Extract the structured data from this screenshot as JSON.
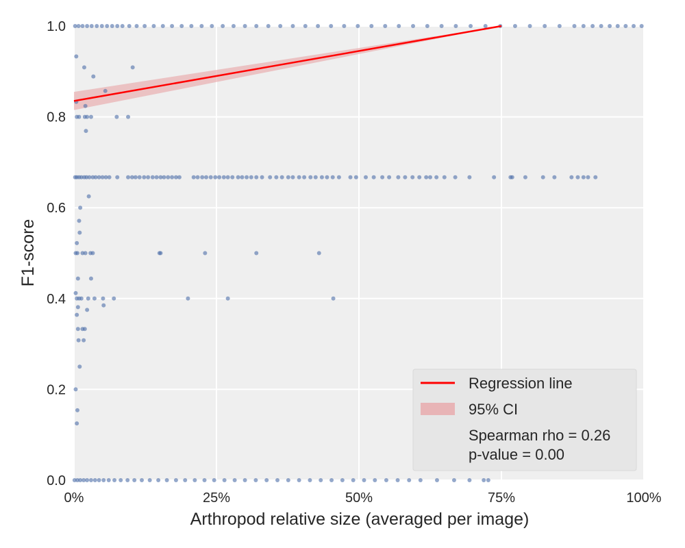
{
  "chart_data": {
    "type": "scatter",
    "title": "",
    "xlabel": "Arthropod relative size (averaged per image)",
    "ylabel": "F1-score",
    "xlim": [
      0,
      100
    ],
    "ylim": [
      0,
      1
    ],
    "x_unit": "%",
    "x_ticks": [
      "0%",
      "25%",
      "50%",
      "75%",
      "100%"
    ],
    "y_ticks": [
      "0.0",
      "0.2",
      "0.4",
      "0.6",
      "0.8",
      "1.0"
    ],
    "grid": true,
    "background": "#efefef",
    "point_color": "#4c6ea8",
    "line_color": "#ff0000",
    "band_color": "#e8a3a5",
    "legend": {
      "placement": "bottom-right",
      "entries": [
        "Regression line",
        "95% CI"
      ],
      "stats": [
        "Spearman rho = 0.26",
        "p-value = 0.00"
      ]
    },
    "regression": {
      "x": [
        0,
        75
      ],
      "y": [
        0.835,
        1.0
      ],
      "ci_lower": [
        0.815,
        1.0
      ],
      "ci_upper": [
        0.855,
        1.0
      ]
    },
    "series": [
      {
        "points": [
          [
            0.3,
            0.2
          ],
          [
            0.5,
            0.125
          ],
          [
            0.6,
            0.154
          ],
          [
            0.4,
            0.933
          ],
          [
            1.8,
            0.909
          ],
          [
            3.4,
            0.889
          ],
          [
            10.3,
            0.909
          ],
          [
            5.5,
            0.857
          ],
          [
            0.4,
            0.833
          ],
          [
            2.0,
            0.824
          ],
          [
            0.5,
            0.8
          ],
          [
            0.9,
            0.8
          ],
          [
            1.9,
            0.8
          ],
          [
            2.3,
            0.8
          ],
          [
            3.0,
            0.8
          ],
          [
            7.5,
            0.8
          ],
          [
            9.5,
            0.8
          ],
          [
            2.1,
            0.769
          ],
          [
            1.1,
            0.6
          ],
          [
            0.9,
            0.571
          ],
          [
            1.0,
            0.545
          ],
          [
            0.5,
            0.522
          ],
          [
            2.6,
            0.625
          ],
          [
            0.3,
            0.5
          ],
          [
            0.6,
            0.5
          ],
          [
            1.5,
            0.5
          ],
          [
            2.0,
            0.5
          ],
          [
            2.9,
            0.5
          ],
          [
            3.3,
            0.5
          ],
          [
            15.0,
            0.5
          ],
          [
            15.2,
            0.5
          ],
          [
            23.0,
            0.5
          ],
          [
            32.0,
            0.5
          ],
          [
            43.0,
            0.5
          ],
          [
            0.7,
            0.444
          ],
          [
            3.0,
            0.444
          ],
          [
            0.3,
            0.412
          ],
          [
            0.5,
            0.4
          ],
          [
            0.9,
            0.4
          ],
          [
            1.3,
            0.4
          ],
          [
            2.5,
            0.4
          ],
          [
            3.6,
            0.4
          ],
          [
            5.1,
            0.4
          ],
          [
            7.0,
            0.4
          ],
          [
            20.0,
            0.4
          ],
          [
            27.0,
            0.4
          ],
          [
            45.5,
            0.4
          ],
          [
            5.2,
            0.385
          ],
          [
            0.7,
            0.381
          ],
          [
            2.3,
            0.375
          ],
          [
            0.5,
            0.364
          ],
          [
            0.7,
            0.333
          ],
          [
            1.5,
            0.333
          ],
          [
            1.9,
            0.333
          ],
          [
            0.8,
            0.308
          ],
          [
            1.7,
            0.308
          ],
          [
            1.0,
            0.25
          ],
          [
            0.2,
            0.667
          ],
          [
            0.5,
            0.667
          ],
          [
            0.9,
            0.667
          ],
          [
            1.3,
            0.667
          ],
          [
            1.8,
            0.667
          ],
          [
            2.2,
            0.667
          ],
          [
            2.7,
            0.667
          ],
          [
            3.3,
            0.667
          ],
          [
            3.8,
            0.667
          ],
          [
            4.4,
            0.667
          ],
          [
            5.0,
            0.667
          ],
          [
            5.6,
            0.667
          ],
          [
            6.2,
            0.667
          ],
          [
            7.6,
            0.667
          ],
          [
            9.5,
            0.667
          ],
          [
            10.2,
            0.667
          ],
          [
            10.8,
            0.667
          ],
          [
            11.5,
            0.667
          ],
          [
            12.3,
            0.667
          ],
          [
            13.0,
            0.667
          ],
          [
            13.8,
            0.667
          ],
          [
            14.5,
            0.667
          ],
          [
            15.2,
            0.667
          ],
          [
            15.8,
            0.667
          ],
          [
            16.5,
            0.667
          ],
          [
            17.2,
            0.667
          ],
          [
            17.9,
            0.667
          ],
          [
            18.5,
            0.667
          ],
          [
            21.0,
            0.667
          ],
          [
            21.7,
            0.667
          ],
          [
            22.5,
            0.667
          ],
          [
            23.2,
            0.667
          ],
          [
            24.0,
            0.667
          ],
          [
            24.8,
            0.667
          ],
          [
            25.5,
            0.667
          ],
          [
            26.3,
            0.667
          ],
          [
            27.0,
            0.667
          ],
          [
            27.8,
            0.667
          ],
          [
            28.8,
            0.667
          ],
          [
            29.5,
            0.667
          ],
          [
            30.3,
            0.667
          ],
          [
            31.1,
            0.667
          ],
          [
            32.0,
            0.667
          ],
          [
            33.0,
            0.667
          ],
          [
            34.4,
            0.667
          ],
          [
            35.5,
            0.667
          ],
          [
            36.5,
            0.667
          ],
          [
            37.6,
            0.667
          ],
          [
            38.4,
            0.667
          ],
          [
            39.5,
            0.667
          ],
          [
            40.4,
            0.667
          ],
          [
            41.5,
            0.667
          ],
          [
            42.4,
            0.667
          ],
          [
            43.5,
            0.667
          ],
          [
            44.4,
            0.667
          ],
          [
            45.4,
            0.667
          ],
          [
            46.5,
            0.667
          ],
          [
            48.5,
            0.667
          ],
          [
            49.5,
            0.667
          ],
          [
            51.2,
            0.667
          ],
          [
            52.6,
            0.667
          ],
          [
            54.1,
            0.667
          ],
          [
            55.3,
            0.667
          ],
          [
            56.9,
            0.667
          ],
          [
            58.1,
            0.667
          ],
          [
            59.4,
            0.667
          ],
          [
            60.6,
            0.667
          ],
          [
            61.8,
            0.667
          ],
          [
            62.5,
            0.667
          ],
          [
            63.6,
            0.667
          ],
          [
            65.0,
            0.667
          ],
          [
            66.9,
            0.667
          ],
          [
            69.4,
            0.667
          ],
          [
            73.7,
            0.667
          ],
          [
            76.6,
            0.667
          ],
          [
            76.9,
            0.667
          ],
          [
            79.2,
            0.667
          ],
          [
            82.3,
            0.667
          ],
          [
            84.3,
            0.667
          ],
          [
            87.3,
            0.667
          ],
          [
            88.4,
            0.667
          ],
          [
            89.4,
            0.667
          ],
          [
            90.2,
            0.667
          ],
          [
            91.5,
            0.667
          ],
          [
            0.2,
            1
          ],
          [
            0.8,
            1
          ],
          [
            1.5,
            1
          ],
          [
            2.3,
            1
          ],
          [
            3.1,
            1
          ],
          [
            4.0,
            1
          ],
          [
            4.9,
            1
          ],
          [
            5.8,
            1
          ],
          [
            6.7,
            1
          ],
          [
            7.6,
            1
          ],
          [
            8.5,
            1
          ],
          [
            9.7,
            1
          ],
          [
            11.0,
            1
          ],
          [
            12.4,
            1
          ],
          [
            14.0,
            1
          ],
          [
            15.6,
            1
          ],
          [
            17.2,
            1
          ],
          [
            18.9,
            1
          ],
          [
            20.6,
            1
          ],
          [
            22.4,
            1
          ],
          [
            24.2,
            1
          ],
          [
            26.1,
            1
          ],
          [
            28.0,
            1
          ],
          [
            30.0,
            1
          ],
          [
            32.0,
            1
          ],
          [
            34.1,
            1
          ],
          [
            36.2,
            1
          ],
          [
            38.4,
            1
          ],
          [
            40.6,
            1
          ],
          [
            42.8,
            1
          ],
          [
            45.1,
            1
          ],
          [
            47.4,
            1
          ],
          [
            49.8,
            1
          ],
          [
            52.2,
            1
          ],
          [
            54.6,
            1
          ],
          [
            57.0,
            1
          ],
          [
            59.5,
            1
          ],
          [
            62.0,
            1
          ],
          [
            64.5,
            1
          ],
          [
            67.0,
            1
          ],
          [
            69.6,
            1
          ],
          [
            72.2,
            1
          ],
          [
            74.8,
            1
          ],
          [
            77.4,
            1
          ],
          [
            80.0,
            1
          ],
          [
            82.6,
            1
          ],
          [
            85.2,
            1
          ],
          [
            87.8,
            1
          ],
          [
            89.4,
            1
          ],
          [
            91.0,
            1
          ],
          [
            92.5,
            1
          ],
          [
            94.0,
            1
          ],
          [
            95.4,
            1
          ],
          [
            96.8,
            1
          ],
          [
            98.2,
            1
          ],
          [
            99.6,
            1
          ],
          [
            0.1,
            0
          ],
          [
            0.6,
            0
          ],
          [
            1.1,
            0
          ],
          [
            1.7,
            0
          ],
          [
            2.3,
            0
          ],
          [
            3.0,
            0
          ],
          [
            3.7,
            0
          ],
          [
            4.4,
            0
          ],
          [
            5.2,
            0
          ],
          [
            6.1,
            0
          ],
          [
            7.1,
            0
          ],
          [
            8.2,
            0
          ],
          [
            9.4,
            0
          ],
          [
            10.6,
            0
          ],
          [
            11.9,
            0
          ],
          [
            13.3,
            0
          ],
          [
            14.8,
            0
          ],
          [
            16.3,
            0
          ],
          [
            17.9,
            0
          ],
          [
            19.5,
            0
          ],
          [
            21.2,
            0
          ],
          [
            22.9,
            0
          ],
          [
            24.6,
            0
          ],
          [
            26.4,
            0
          ],
          [
            28.2,
            0
          ],
          [
            30.0,
            0
          ],
          [
            31.9,
            0
          ],
          [
            33.8,
            0
          ],
          [
            35.7,
            0
          ],
          [
            37.6,
            0
          ],
          [
            39.5,
            0
          ],
          [
            41.4,
            0
          ],
          [
            43.3,
            0
          ],
          [
            45.2,
            0
          ],
          [
            47.1,
            0
          ],
          [
            49.0,
            0
          ],
          [
            50.9,
            0
          ],
          [
            52.8,
            0
          ],
          [
            54.8,
            0
          ],
          [
            56.8,
            0
          ],
          [
            58.8,
            0
          ],
          [
            60.8,
            0
          ],
          [
            63.7,
            0
          ],
          [
            66.7,
            0
          ],
          [
            69.4,
            0
          ],
          [
            71.9,
            0
          ],
          [
            72.7,
            0
          ]
        ]
      }
    ]
  }
}
